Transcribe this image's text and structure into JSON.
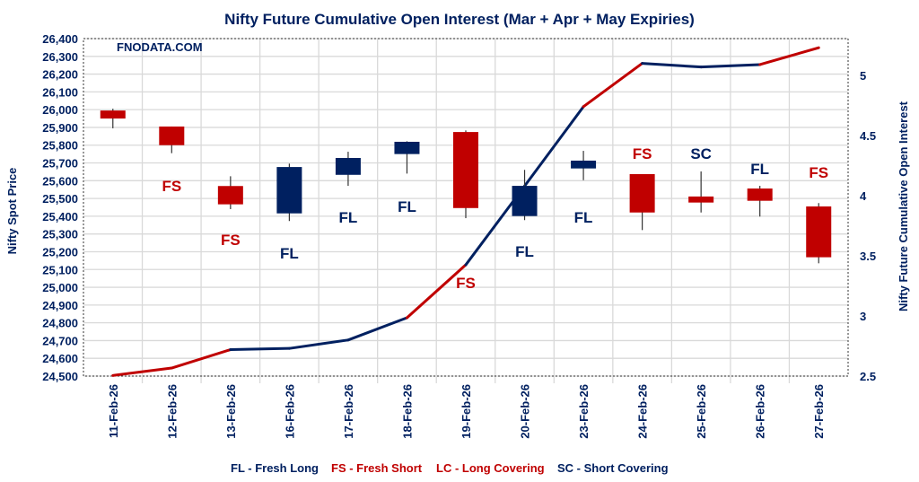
{
  "chart_data": {
    "type": "candlestick+line",
    "title": "Nifty Future Cumulative Open Interest (Mar + Apr + May Expiries)",
    "watermark": "FNODATA.COM",
    "ylabel": "Nifty Spot Price",
    "y2label": "Nifty Future Cumulative Open Interest",
    "ylim": [
      24500,
      26400
    ],
    "ystep": 100,
    "y2lim": [
      2.5,
      5.25
    ],
    "y2ticks": [
      2.5,
      3,
      3.5,
      4,
      4.5,
      5
    ],
    "grid": true,
    "categories": [
      "11-Feb-26",
      "12-Feb-26",
      "13-Feb-26",
      "16-Feb-26",
      "17-Feb-26",
      "18-Feb-26",
      "19-Feb-26",
      "20-Feb-26",
      "23-Feb-26",
      "24-Feb-26",
      "25-Feb-26",
      "26-Feb-26",
      "27-Feb-26"
    ],
    "ohlc": [
      {
        "open": 25995,
        "high": 26005,
        "low": 25895,
        "close": 25950
      },
      {
        "open": 25905,
        "high": 25905,
        "low": 25755,
        "close": 25800
      },
      {
        "open": 25570,
        "high": 25625,
        "low": 25440,
        "close": 25467
      },
      {
        "open": 25416,
        "high": 25696,
        "low": 25373,
        "close": 25677
      },
      {
        "open": 25633,
        "high": 25763,
        "low": 25571,
        "close": 25728
      },
      {
        "open": 25750,
        "high": 25822,
        "low": 25640,
        "close": 25819
      },
      {
        "open": 25874,
        "high": 25883,
        "low": 25389,
        "close": 25446
      },
      {
        "open": 25401,
        "high": 25661,
        "low": 25378,
        "close": 25571
      },
      {
        "open": 25669,
        "high": 25768,
        "low": 25603,
        "close": 25713
      },
      {
        "open": 25637,
        "high": 25637,
        "low": 25322,
        "close": 25421
      },
      {
        "open": 25511,
        "high": 25652,
        "low": 25421,
        "close": 25477
      },
      {
        "open": 25556,
        "high": 25571,
        "low": 25398,
        "close": 25487
      },
      {
        "open": 25455,
        "high": 25474,
        "low": 25135,
        "close": 25169
      }
    ],
    "open_interest": [
      2.505,
      2.567,
      2.72,
      2.73,
      2.8,
      2.985,
      3.425,
      4.08,
      4.74,
      5.1,
      5.07,
      5.09,
      5.23
    ],
    "signals": [
      "",
      "FS",
      "FS",
      "FL",
      "FL",
      "FL",
      "FS",
      "FL",
      "FL",
      "FS",
      "SC",
      "FL",
      "FS"
    ],
    "legend": [
      {
        "code": "FL",
        "text": "FL - Fresh Long",
        "color": "#002060"
      },
      {
        "code": "FS",
        "text": "FS - Fresh Short",
        "color": "#C00000"
      },
      {
        "code": "LC",
        "text": "LC - Long Covering",
        "color": "#C00000"
      },
      {
        "code": "SC",
        "text": "SC - Short Covering",
        "color": "#002060"
      }
    ],
    "colors": {
      "up": "#002060",
      "down": "#C00000",
      "text": "#002060"
    }
  }
}
